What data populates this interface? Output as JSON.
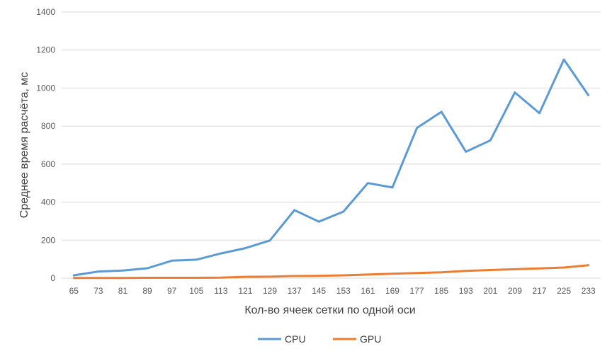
{
  "chart_data": {
    "type": "line",
    "title": "",
    "xlabel": "Кол-во ячеек сетки по одной оси",
    "ylabel": "Среднее время расчёта, мс",
    "ylim": [
      0,
      1400
    ],
    "yticks": [
      0,
      200,
      400,
      600,
      800,
      1000,
      1200,
      1400
    ],
    "grid": true,
    "legend_position": "bottom",
    "categories": [
      "65",
      "73",
      "81",
      "89",
      "97",
      "105",
      "113",
      "121",
      "129",
      "137",
      "145",
      "153",
      "161",
      "169",
      "177",
      "185",
      "193",
      "201",
      "209",
      "217",
      "225",
      "233"
    ],
    "series": [
      {
        "name": "CPU",
        "color": "#5B9BD5",
        "values": [
          15,
          35,
          40,
          52,
          92,
          97,
          130,
          158,
          198,
          358,
          297,
          350,
          500,
          477,
          790,
          875,
          665,
          725,
          977,
          868,
          1150,
          962
        ]
      },
      {
        "name": "GPU",
        "color": "#ED7D31",
        "values": [
          1,
          1,
          1,
          2,
          2,
          2,
          3,
          7,
          8,
          11,
          12,
          15,
          19,
          23,
          27,
          31,
          38,
          43,
          47,
          51,
          56,
          68
        ]
      }
    ]
  }
}
